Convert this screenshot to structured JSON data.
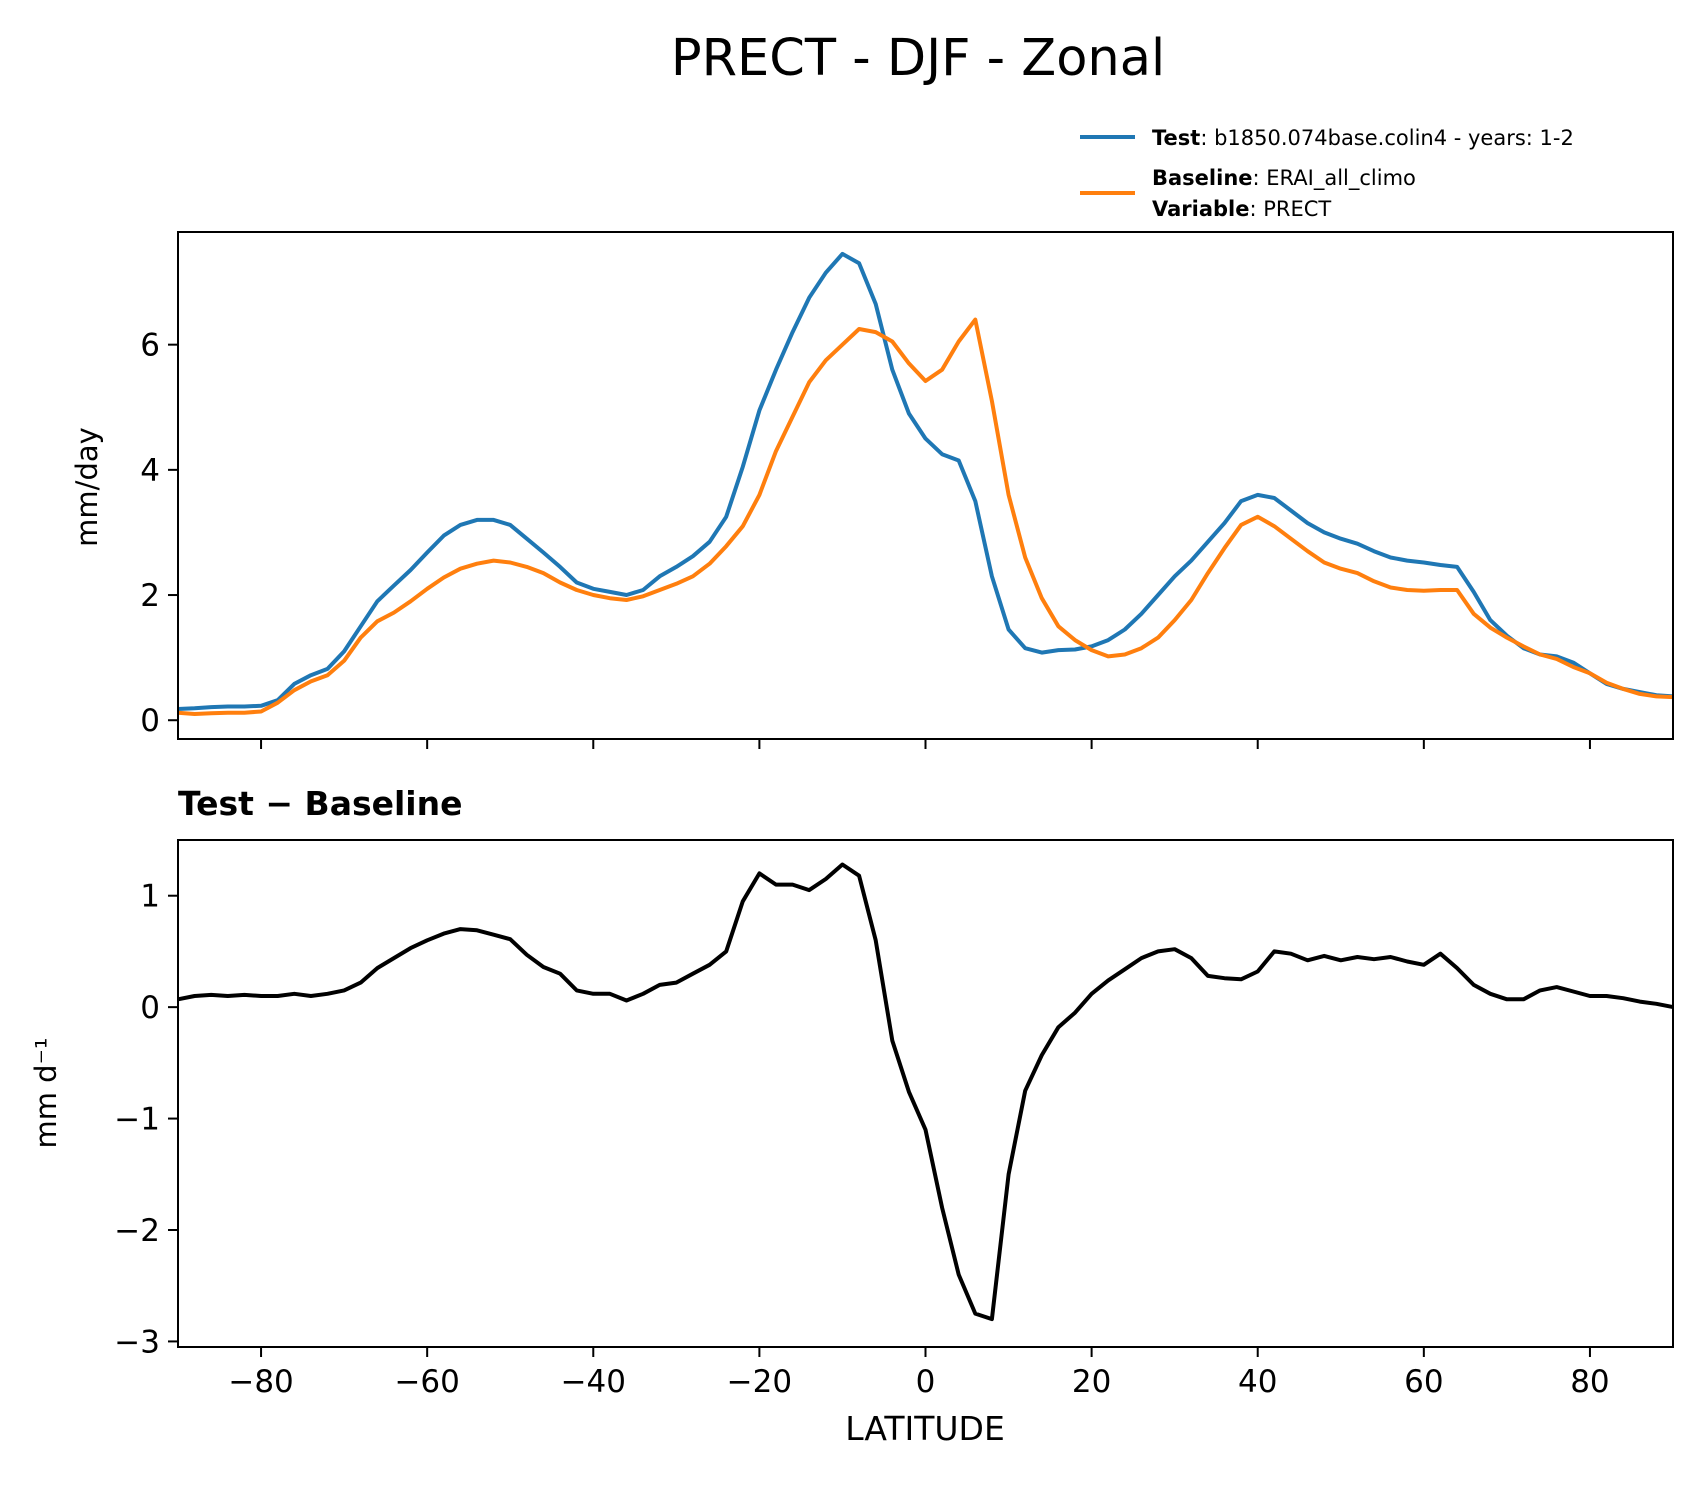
{
  "figure_title": "PRECT - DJF - Zonal",
  "legend": {
    "test_label": "Test",
    "test_value": ": b1850.074base.colin4 - years: 1-2",
    "baseline_label": "Baseline",
    "baseline_value": ": ERAI_all_climo",
    "variable_label": "Variable",
    "variable_value": ": PRECT"
  },
  "colors": {
    "test": "#1f77b4",
    "baseline": "#ff7f0e",
    "diff": "#000000"
  },
  "chart_data": [
    {
      "type": "line",
      "title": "",
      "ylabel": "mm/day",
      "xlabel": "",
      "xlim": [
        -90,
        90
      ],
      "ylim": [
        -0.3,
        7.8
      ],
      "yticks": [
        0,
        2,
        4,
        6
      ],
      "xticks": [
        -80,
        -60,
        -40,
        -20,
        0,
        20,
        40,
        60,
        80
      ],
      "x": [
        -90,
        -88,
        -86,
        -84,
        -82,
        -80,
        -78,
        -76,
        -74,
        -72,
        -70,
        -68,
        -66,
        -64,
        -62,
        -60,
        -58,
        -56,
        -54,
        -52,
        -50,
        -48,
        -46,
        -44,
        -42,
        -40,
        -38,
        -36,
        -34,
        -32,
        -30,
        -28,
        -26,
        -24,
        -22,
        -20,
        -18,
        -16,
        -14,
        -12,
        -10,
        -8,
        -6,
        -4,
        -2,
        0,
        2,
        4,
        6,
        8,
        10,
        12,
        14,
        16,
        18,
        20,
        22,
        24,
        26,
        28,
        30,
        32,
        34,
        36,
        38,
        40,
        42,
        44,
        46,
        48,
        50,
        52,
        54,
        56,
        58,
        60,
        62,
        64,
        66,
        68,
        70,
        72,
        74,
        76,
        78,
        80,
        82,
        84,
        86,
        88,
        90
      ],
      "series": [
        {
          "name": "Test",
          "color": "#1f77b4",
          "values": [
            0.18,
            0.19,
            0.21,
            0.22,
            0.22,
            0.23,
            0.32,
            0.58,
            0.72,
            0.82,
            1.1,
            1.5,
            1.9,
            2.15,
            2.4,
            2.68,
            2.95,
            3.12,
            3.2,
            3.2,
            3.12,
            2.9,
            2.68,
            2.45,
            2.2,
            2.1,
            2.05,
            2.0,
            2.08,
            2.3,
            2.45,
            2.62,
            2.85,
            3.25,
            4.05,
            4.95,
            5.6,
            6.2,
            6.75,
            7.15,
            7.45,
            7.3,
            6.65,
            5.6,
            4.9,
            4.5,
            4.25,
            4.15,
            3.5,
            2.3,
            1.45,
            1.15,
            1.08,
            1.12,
            1.13,
            1.18,
            1.28,
            1.45,
            1.7,
            2.0,
            2.3,
            2.55,
            2.85,
            3.15,
            3.5,
            3.6,
            3.55,
            3.35,
            3.15,
            3.0,
            2.9,
            2.82,
            2.7,
            2.6,
            2.55,
            2.52,
            2.48,
            2.45,
            2.05,
            1.6,
            1.35,
            1.15,
            1.05,
            1.02,
            0.92,
            0.75,
            0.58,
            0.5,
            0.45,
            0.4,
            0.38
          ]
        },
        {
          "name": "Baseline",
          "color": "#ff7f0e",
          "values": [
            0.12,
            0.1,
            0.11,
            0.12,
            0.12,
            0.14,
            0.28,
            0.48,
            0.62,
            0.72,
            0.95,
            1.32,
            1.58,
            1.72,
            1.9,
            2.1,
            2.28,
            2.42,
            2.5,
            2.55,
            2.52,
            2.45,
            2.35,
            2.2,
            2.08,
            2.0,
            1.95,
            1.92,
            1.98,
            2.08,
            2.18,
            2.3,
            2.5,
            2.78,
            3.1,
            3.6,
            4.3,
            4.85,
            5.4,
            5.75,
            6.0,
            6.25,
            6.2,
            6.05,
            5.7,
            5.42,
            5.6,
            6.05,
            6.4,
            5.1,
            3.6,
            2.6,
            1.95,
            1.5,
            1.28,
            1.12,
            1.02,
            1.05,
            1.15,
            1.32,
            1.6,
            1.92,
            2.35,
            2.75,
            3.12,
            3.25,
            3.1,
            2.9,
            2.7,
            2.52,
            2.42,
            2.35,
            2.22,
            2.12,
            2.08,
            2.07,
            2.08,
            2.08,
            1.7,
            1.48,
            1.32,
            1.18,
            1.05,
            0.98,
            0.85,
            0.75,
            0.6,
            0.5,
            0.42,
            0.38,
            0.37
          ]
        }
      ]
    },
    {
      "type": "line",
      "title": "Test − Baseline",
      "ylabel": "mm d⁻¹",
      "xlabel": "LATITUDE",
      "xlim": [
        -90,
        90
      ],
      "ylim": [
        -3.05,
        1.5
      ],
      "yticks": [
        1,
        0,
        -1,
        -2,
        -3
      ],
      "ytick_labels": [
        "1",
        "0",
        "−1",
        "−2",
        "−3"
      ],
      "xticks": [
        -80,
        -60,
        -40,
        -20,
        0,
        20,
        40,
        60,
        80
      ],
      "xtick_labels": [
        "−80",
        "−60",
        "−40",
        "−20",
        "0",
        "20",
        "40",
        "60",
        "80"
      ],
      "x": [
        -90,
        -88,
        -86,
        -84,
        -82,
        -80,
        -78,
        -76,
        -74,
        -72,
        -70,
        -68,
        -66,
        -64,
        -62,
        -60,
        -58,
        -56,
        -54,
        -52,
        -50,
        -48,
        -46,
        -44,
        -42,
        -40,
        -38,
        -36,
        -34,
        -32,
        -30,
        -28,
        -26,
        -24,
        -22,
        -20,
        -18,
        -16,
        -14,
        -12,
        -10,
        -8,
        -6,
        -4,
        -2,
        0,
        2,
        4,
        6,
        8,
        10,
        12,
        14,
        16,
        18,
        20,
        22,
        24,
        26,
        28,
        30,
        32,
        34,
        36,
        38,
        40,
        42,
        44,
        46,
        48,
        50,
        52,
        54,
        56,
        58,
        60,
        62,
        64,
        66,
        68,
        70,
        72,
        74,
        76,
        78,
        80,
        82,
        84,
        86,
        88,
        90
      ],
      "series": [
        {
          "name": "Test − Baseline",
          "color": "#000000",
          "values": [
            0.07,
            0.1,
            0.11,
            0.1,
            0.11,
            0.1,
            0.1,
            0.12,
            0.1,
            0.12,
            0.15,
            0.22,
            0.35,
            0.44,
            0.53,
            0.6,
            0.66,
            0.7,
            0.69,
            0.65,
            0.61,
            0.47,
            0.36,
            0.3,
            0.15,
            0.12,
            0.12,
            0.06,
            0.12,
            0.2,
            0.22,
            0.3,
            0.38,
            0.5,
            0.95,
            1.2,
            1.1,
            1.1,
            1.05,
            1.15,
            1.28,
            1.18,
            0.6,
            -0.3,
            -0.76,
            -1.1,
            -1.8,
            -2.4,
            -2.75,
            -2.8,
            -1.5,
            -0.75,
            -0.43,
            -0.18,
            -0.05,
            0.12,
            0.24,
            0.34,
            0.44,
            0.5,
            0.52,
            0.44,
            0.28,
            0.26,
            0.25,
            0.32,
            0.5,
            0.48,
            0.42,
            0.46,
            0.42,
            0.45,
            0.43,
            0.45,
            0.41,
            0.38,
            0.48,
            0.35,
            0.2,
            0.12,
            0.07,
            0.07,
            0.15,
            0.18,
            0.14,
            0.1,
            0.1,
            0.08,
            0.05,
            0.03,
            0.0
          ]
        }
      ]
    }
  ]
}
